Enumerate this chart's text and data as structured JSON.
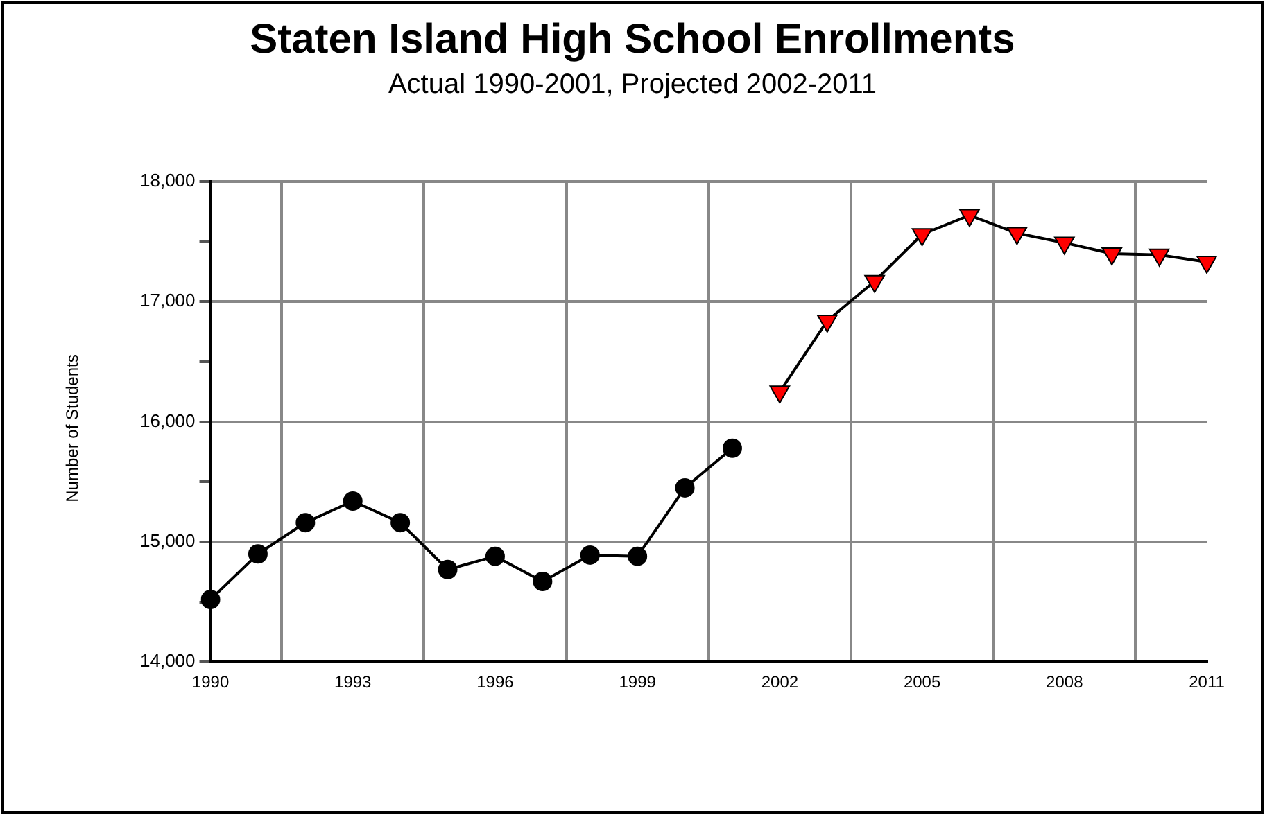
{
  "chart_data": {
    "type": "line",
    "title": "Staten Island High School Enrollments",
    "subtitle": "Actual 1990-2001, Projected 2002-2011",
    "ylabel": "Number of Students",
    "categories": [
      "1990",
      null,
      null,
      "1993",
      null,
      null,
      "1996",
      null,
      null,
      "1999",
      null,
      null,
      "2002",
      null,
      null,
      "2005",
      null,
      null,
      "2008",
      null,
      null,
      "2011"
    ],
    "series": [
      {
        "color": "#000000",
        "marker": "circle",
        "values": [
          14520,
          14900,
          15160,
          15340,
          15160,
          14770,
          14880,
          14670,
          14890,
          14880,
          15450,
          15780,
          null,
          null,
          null,
          null,
          null,
          null,
          null,
          null,
          null,
          null
        ]
      },
      {
        "color": "#ff0000",
        "marker": "triangle",
        "values": [
          null,
          null,
          null,
          null,
          null,
          null,
          null,
          null,
          null,
          null,
          null,
          null,
          16250,
          16840,
          17170,
          17560,
          17720,
          17570,
          17490,
          17400,
          17390,
          17330
        ]
      }
    ],
    "ylim": [
      14000,
      18000
    ],
    "yticks": [
      {
        "value": 14000,
        "label": "14,000"
      },
      {
        "value": 14500,
        "label": null
      },
      {
        "value": 15000,
        "label": "15,000"
      },
      {
        "value": 15500,
        "label": null
      },
      {
        "value": 16000,
        "label": "16,000"
      },
      {
        "value": 16500,
        "label": null
      },
      {
        "value": 17000,
        "label": "17,000"
      },
      {
        "value": 17500,
        "label": null
      },
      {
        "value": 18000,
        "label": "18,000"
      }
    ],
    "grid": true,
    "legend": false,
    "line_style": "solid"
  }
}
